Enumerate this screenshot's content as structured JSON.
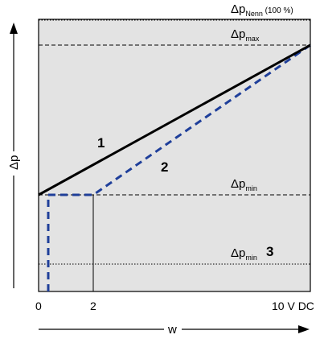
{
  "labels": {
    "dp_nenn_base": "Δp",
    "dp_nenn_sub": "Nenn",
    "dp_nenn_suffix": " (100 %)",
    "dp_max_base": "Δp",
    "dp_max_sub": "max",
    "dp_min_base": "Δp",
    "dp_min_sub": "min",
    "dp_min3_base": "Δp",
    "dp_min3_sub": "min",
    "curve_1": "1",
    "curve_2": "2",
    "curve_3": "3",
    "y_axis": "Δp",
    "x_axis": "w",
    "x_tick_0": "0",
    "x_tick_2": "2",
    "x_tick_10": "10 V DC"
  },
  "colors": {
    "plot_background": "#e3e3e3",
    "curve_1": "#000000",
    "curve_2": "#1f3f9a",
    "reference_lines": "#000000"
  },
  "chart_data": {
    "type": "line",
    "x_ticks": [
      "0",
      "2",
      "10 V DC"
    ],
    "series": [
      {
        "name": "1",
        "points": [
          [
            0,
            "Δp min"
          ],
          [
            10,
            "Δp max"
          ]
        ]
      },
      {
        "name": "2",
        "points": [
          [
            0,
            "Δp min"
          ],
          [
            2,
            "Δp min"
          ],
          [
            10,
            "Δp max"
          ]
        ]
      },
      {
        "name": "3",
        "points": []
      }
    ]
  }
}
